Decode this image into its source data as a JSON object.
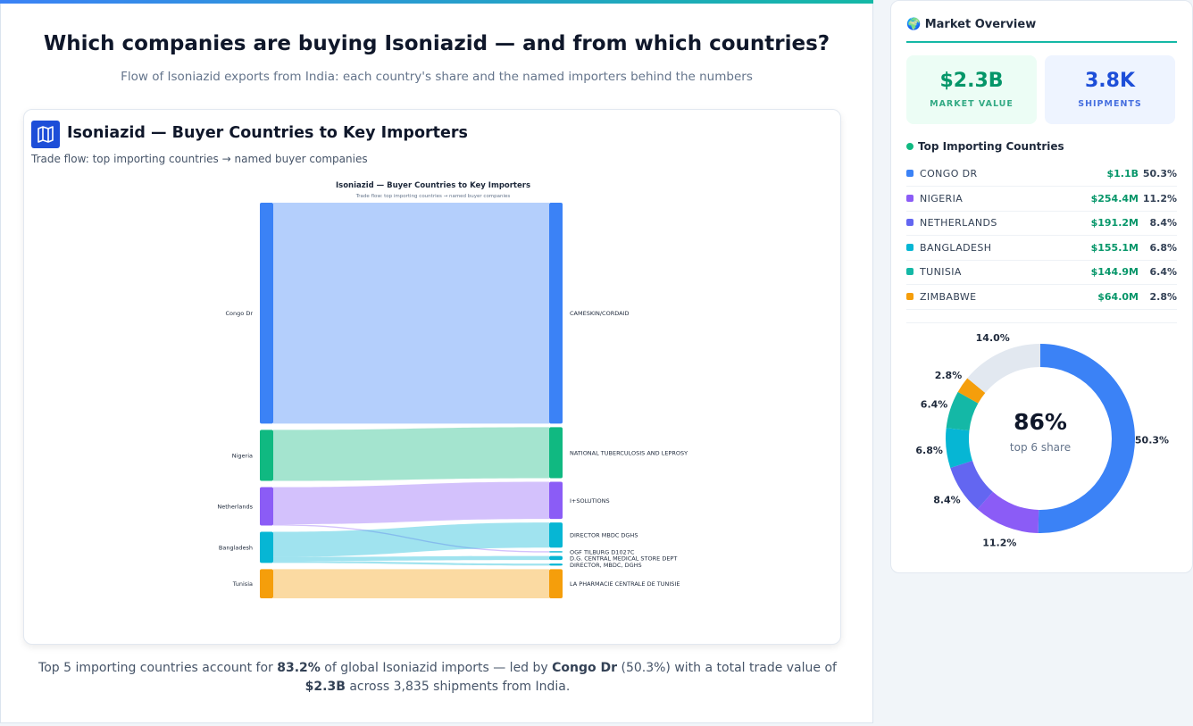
{
  "header": {
    "title": "Which companies are buying Isoniazid — and from which countries?",
    "subtitle": "Flow of Isoniazid exports from India: each country's share and the named importers behind the numbers"
  },
  "card": {
    "title": "Isoniazid — Buyer Countries to Key Importers",
    "subtitle": "Trade flow: top importing countries → named buyer companies"
  },
  "footer": {
    "segments": [
      {
        "text": "Top 5 importing countries account for ",
        "bold": false
      },
      {
        "text": "83.2%",
        "bold": true
      },
      {
        "text": " of global Isoniazid imports — led by ",
        "bold": false
      },
      {
        "text": "Congo Dr",
        "bold": true
      },
      {
        "text": " (50.3%) with a total trade value of ",
        "bold": false
      },
      {
        "text": "$2.3B",
        "bold": true
      },
      {
        "text": " across 3,835 shipments from India.",
        "bold": false
      }
    ]
  },
  "sidebar": {
    "icon": "🌍",
    "title": "Market Overview",
    "kpis": [
      {
        "value": "$2.3B",
        "label": "MARKET VALUE",
        "color": "#059669",
        "bg": "#ecfdf5"
      },
      {
        "value": "3.8K",
        "label": "SHIPMENTS",
        "color": "#1d4ed8",
        "bg": "#eef4ff"
      }
    ],
    "list_title": "Top Importing Countries",
    "row_values": [
      "$1.1B",
      "$254.4M",
      "$191.2M",
      "$155.1M",
      "$144.9M",
      "$64.0M"
    ]
  },
  "chart_data": [
    {
      "type": "sankey",
      "title": "Isoniazid — Buyer Countries to Key Importers",
      "subtitle": "Trade flow: top importing countries → named buyer companies",
      "sources": [
        {
          "name": "Congo Dr",
          "color": "#3b82f6"
        },
        {
          "name": "Nigeria",
          "color": "#10b981"
        },
        {
          "name": "Netherlands",
          "color": "#8b5cf6"
        },
        {
          "name": "Bangladesh",
          "color": "#06b6d4"
        },
        {
          "name": "Tunisia",
          "color": "#f59e0b"
        }
      ],
      "targets": [
        {
          "name": "CAMESKIN/CORDAID",
          "color": "#3b82f6"
        },
        {
          "name": "NATIONAL TUBERCULOSIS AND LEPROSY",
          "color": "#10b981"
        },
        {
          "name": "I+SOLUTIONS",
          "color": "#8b5cf6"
        },
        {
          "name": "DIRECTOR MBDC DGHS",
          "color": "#06b6d4"
        },
        {
          "name": "OGF TILBURG D1027C",
          "color": "#06b6d4"
        },
        {
          "name": "D.G. CENTRAL MEDICAL STORE DEPT",
          "color": "#06b6d4"
        },
        {
          "name": "DIRECTOR, MBDC, DGHS",
          "color": "#06b6d4"
        },
        {
          "name": "LA PHARMACIE CENTRALE DE TUNISIE",
          "color": "#f59e0b"
        }
      ],
      "links": [
        {
          "source": 0,
          "target": 0,
          "value": 1100
        },
        {
          "source": 1,
          "target": 1,
          "value": 254
        },
        {
          "source": 2,
          "target": 2,
          "value": 185
        },
        {
          "source": 2,
          "target": 4,
          "value": 6
        },
        {
          "source": 3,
          "target": 3,
          "value": 125
        },
        {
          "source": 3,
          "target": 5,
          "value": 20
        },
        {
          "source": 3,
          "target": 6,
          "value": 10
        },
        {
          "source": 4,
          "target": 7,
          "value": 145
        }
      ]
    },
    {
      "type": "donut",
      "categories": [
        "CONGO DR",
        "NIGERIA",
        "NETHERLANDS",
        "BANGLADESH",
        "TUNISIA",
        "ZIMBABWE",
        null
      ],
      "values": [
        50.3,
        11.2,
        8.4,
        6.8,
        6.4,
        2.8,
        14.0
      ],
      "value_labels": [
        "50.3%",
        "11.2%",
        "8.4%",
        "6.8%",
        "6.4%",
        "2.8%",
        "14.0%"
      ],
      "colors": [
        "#3b82f6",
        "#8b5cf6",
        "#6366f1",
        "#06b6d4",
        "#14b8a6",
        "#f59e0b",
        "#e2e8f0"
      ],
      "center_label": "86%",
      "center_text": "top 6 share"
    }
  ]
}
